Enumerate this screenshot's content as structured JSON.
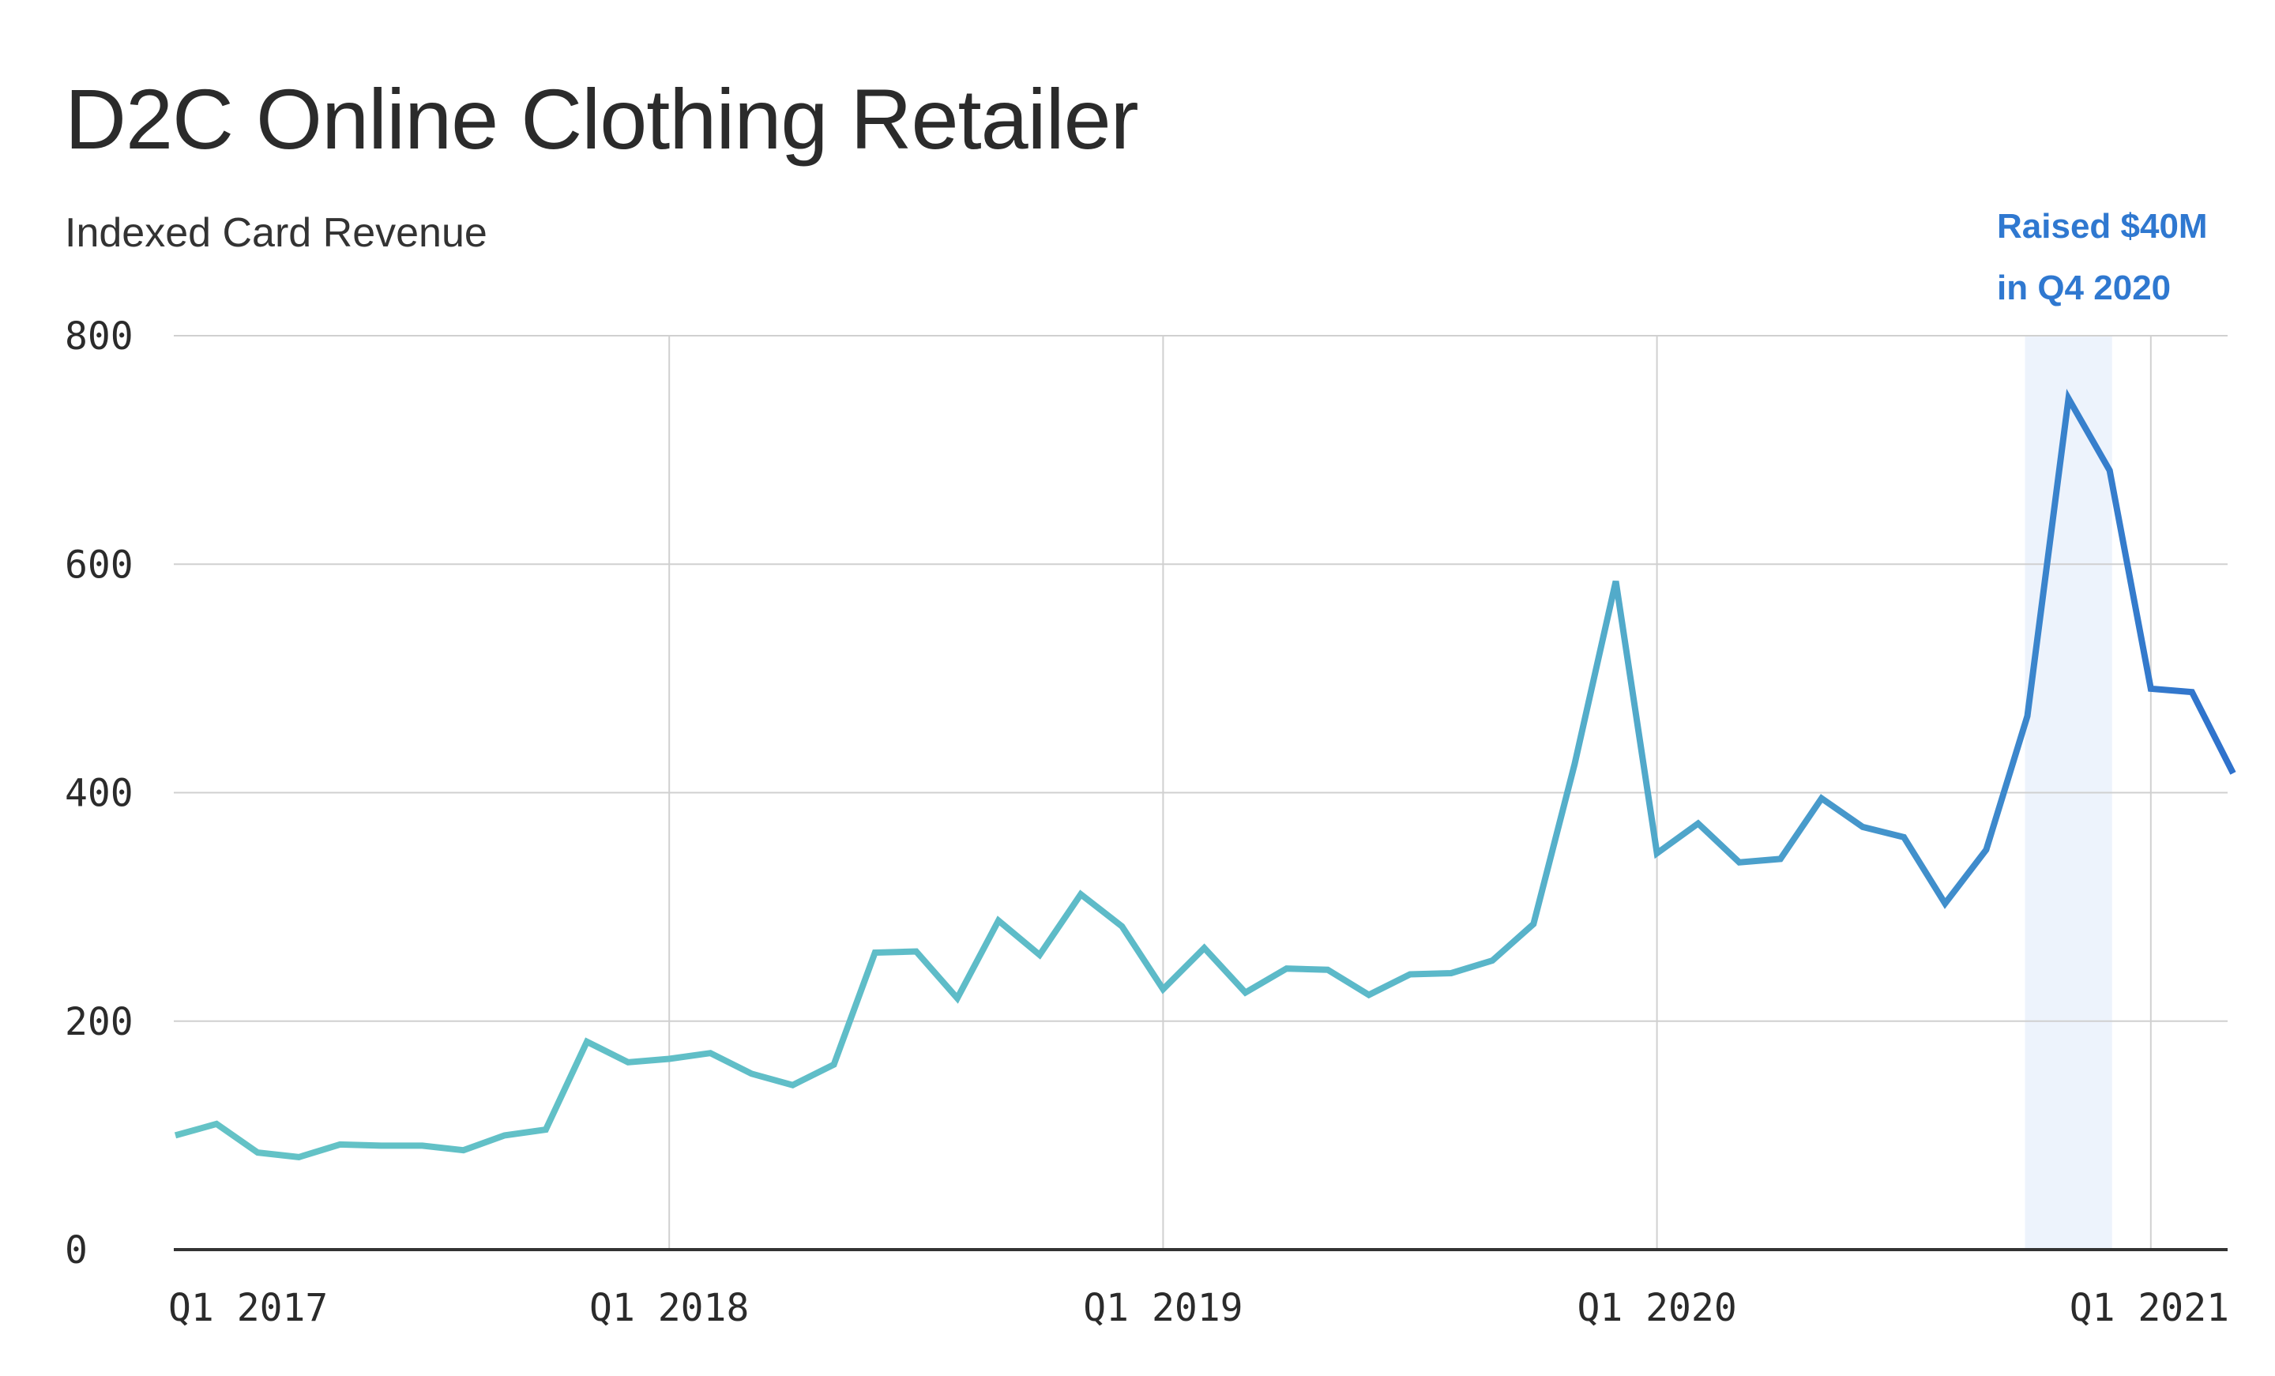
{
  "chart_data": {
    "type": "line",
    "title": "D2C Online Clothing Retailer",
    "subtitle": "Indexed Card Revenue",
    "ylim": [
      0,
      800
    ],
    "yticks": [
      0,
      200,
      400,
      600,
      800
    ],
    "xticks": [
      "Q1 2017",
      "Q1 2018",
      "Q1 2019",
      "Q1 2020",
      "Q1 2021"
    ],
    "grid": true,
    "annotation": {
      "lines": [
        "Raised $40M",
        "in Q4 2020"
      ],
      "highlight_period": [
        "2020-10",
        "2020-12"
      ]
    },
    "x": [
      "2017-01",
      "2017-02",
      "2017-03",
      "2017-04",
      "2017-05",
      "2017-06",
      "2017-07",
      "2017-08",
      "2017-09",
      "2017-10",
      "2017-11",
      "2017-12",
      "2018-01",
      "2018-02",
      "2018-03",
      "2018-04",
      "2018-05",
      "2018-06",
      "2018-07",
      "2018-08",
      "2018-09",
      "2018-10",
      "2018-11",
      "2018-12",
      "2019-01",
      "2019-02",
      "2019-03",
      "2019-04",
      "2019-05",
      "2019-06",
      "2019-07",
      "2019-08",
      "2019-09",
      "2019-10",
      "2019-11",
      "2019-12",
      "2020-01",
      "2020-02",
      "2020-03",
      "2020-04",
      "2020-05",
      "2020-06",
      "2020-07",
      "2020-08",
      "2020-09",
      "2020-10",
      "2020-11",
      "2020-12",
      "2021-01",
      "2021-02",
      "2021-03"
    ],
    "series": [
      {
        "values": [
          100,
          110,
          85,
          81,
          92,
          91,
          91,
          87,
          100,
          105,
          182,
          164,
          167,
          172,
          154,
          144,
          162,
          260,
          261,
          220,
          288,
          258,
          311,
          283,
          228,
          264,
          225,
          246,
          245,
          223,
          241,
          242,
          253,
          285,
          425,
          585,
          347,
          373,
          339,
          342,
          395,
          370,
          361,
          303,
          350,
          467,
          745,
          682,
          491,
          488,
          417
        ]
      }
    ],
    "colors": {
      "line_start": "#64c3c6",
      "line_mid": "#4a9ecb",
      "line_end": "#2f72cc",
      "highlight": "#edf3fc",
      "grid": "#d0d0d0",
      "axis": "#333333"
    }
  }
}
